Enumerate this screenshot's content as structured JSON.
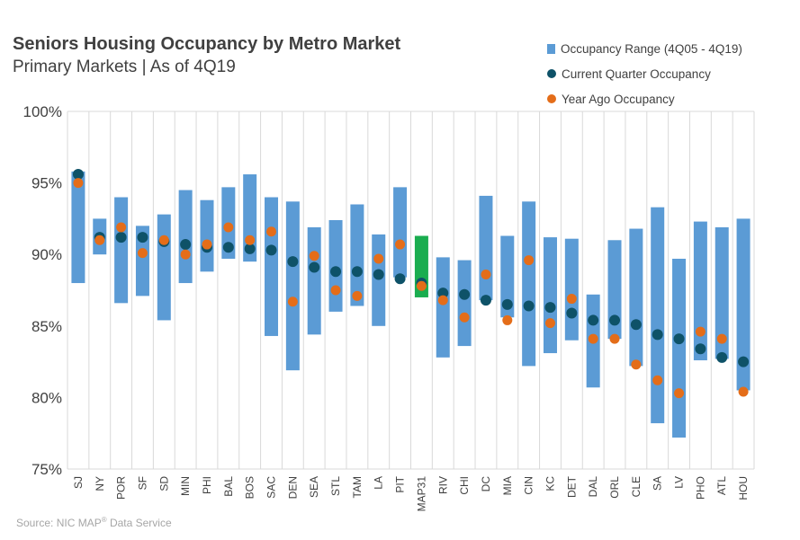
{
  "header": {
    "title": "Seniors Housing Occupancy by Metro Market",
    "subtitle": "Primary Markets | As of 4Q19"
  },
  "source": {
    "prefix": "Source: NIC MAP",
    "sup": "®",
    "suffix": " Data Service"
  },
  "colors": {
    "range": "#5b9bd5",
    "range_highlight": "#1aad4f",
    "current": "#0e5268",
    "year_ago": "#e46d19",
    "grid": "#d9d9d9"
  },
  "chart_data": {
    "type": "floating-bar-with-markers",
    "title": "Seniors Housing Occupancy by Metro Market",
    "subtitle": "Primary Markets | As of 4Q19",
    "ylabel": "",
    "xlabel": "",
    "ylim": [
      75,
      100
    ],
    "yticks": [
      75,
      80,
      85,
      90,
      95,
      100
    ],
    "ytick_labels": [
      "75%",
      "80%",
      "85%",
      "90%",
      "95%",
      "100%"
    ],
    "grid": "vertical",
    "legend_position": "top-right",
    "highlight_category": "MAP31",
    "categories": [
      "SJ",
      "NY",
      "POR",
      "SF",
      "SD",
      "MIN",
      "PHI",
      "BAL",
      "BOS",
      "SAC",
      "DEN",
      "SEA",
      "STL",
      "TAM",
      "LA",
      "PIT",
      "MAP31",
      "RIV",
      "CHI",
      "DC",
      "MIA",
      "CIN",
      "KC",
      "DET",
      "DAL",
      "ORL",
      "CLE",
      "SA",
      "LV",
      "PHO",
      "ATL",
      "HOU"
    ],
    "series": [
      {
        "name": "Occupancy Range (4Q05 - 4Q19)",
        "kind": "range",
        "low": [
          88.0,
          90.0,
          86.6,
          87.1,
          85.4,
          88.0,
          88.8,
          89.7,
          89.5,
          84.3,
          81.9,
          84.4,
          86.0,
          86.4,
          85.0,
          88.4,
          87.0,
          82.8,
          83.6,
          86.8,
          85.6,
          82.2,
          83.1,
          84.0,
          80.7,
          84.1,
          82.2,
          78.2,
          77.2,
          82.6,
          82.7,
          80.5
        ],
        "high": [
          95.8,
          92.5,
          94.0,
          92.0,
          92.8,
          94.5,
          93.8,
          94.7,
          95.6,
          94.0,
          93.7,
          91.9,
          92.4,
          93.5,
          91.4,
          94.7,
          91.3,
          89.8,
          89.6,
          94.1,
          91.3,
          93.7,
          91.2,
          91.1,
          87.2,
          91.0,
          91.8,
          93.3,
          89.7,
          92.3,
          91.9,
          92.5
        ]
      },
      {
        "name": "Current Quarter Occupancy",
        "kind": "marker",
        "values": [
          95.6,
          91.2,
          91.2,
          91.2,
          90.9,
          90.7,
          90.5,
          90.5,
          90.4,
          90.3,
          89.5,
          89.1,
          88.8,
          88.8,
          88.6,
          88.3,
          88.0,
          87.3,
          87.2,
          86.8,
          86.5,
          86.4,
          86.3,
          85.9,
          85.4,
          85.4,
          85.1,
          84.4,
          84.1,
          83.4,
          82.8,
          82.5
        ]
      },
      {
        "name": "Year Ago Occupancy",
        "kind": "marker",
        "values": [
          95.0,
          91.0,
          91.9,
          90.1,
          91.0,
          90.0,
          90.7,
          91.9,
          91.0,
          91.6,
          86.7,
          89.9,
          87.5,
          87.1,
          89.7,
          90.7,
          87.8,
          86.8,
          85.6,
          88.6,
          85.4,
          89.6,
          85.2,
          86.9,
          84.1,
          84.1,
          82.3,
          81.2,
          80.3,
          84.6,
          84.1,
          80.4
        ]
      }
    ]
  }
}
